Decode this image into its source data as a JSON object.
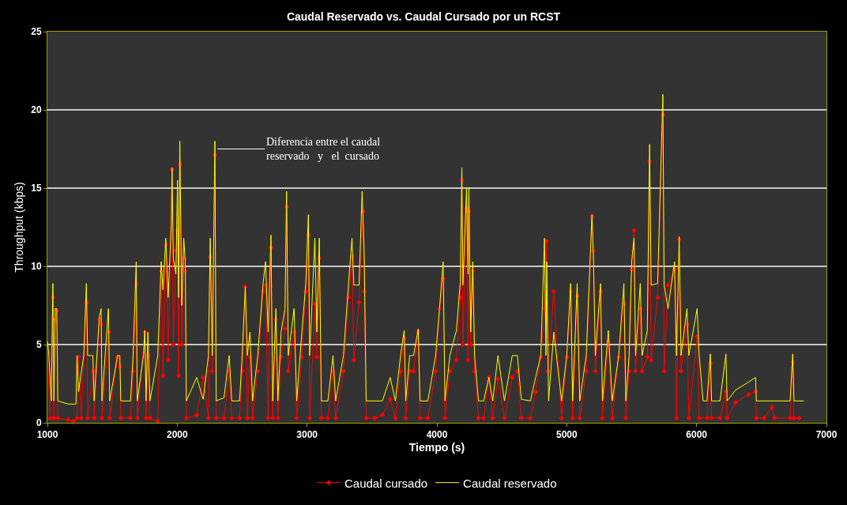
{
  "chart_data": {
    "type": "line",
    "title": "Caudal Reservado vs. Caudal Cursado por un RCST",
    "xlabel": "Tiempo (s)",
    "ylabel": "Throughput (kbps)",
    "xlim": [
      1000,
      7000
    ],
    "xticks": [
      1000,
      2000,
      3000,
      4000,
      5000,
      6000,
      7000
    ],
    "ylim": [
      0,
      25
    ],
    "yticks": [
      0,
      5,
      10,
      15,
      20,
      25
    ],
    "grid": "y",
    "legend": "bottom",
    "annotations": [
      {
        "text": "Diferencia entre el caudal\nreservado   y   el  cursado",
        "x": 2310,
        "y": 17.5
      }
    ],
    "series": [
      {
        "name": "Caudal cursado",
        "color": "#ff0000",
        "marker": "diamond",
        "line_style": "solid",
        "x": [
          1000,
          1020,
          1042,
          1050,
          1060,
          1072,
          1080,
          1160,
          1200,
          1228,
          1240,
          1260,
          1300,
          1310,
          1350,
          1360,
          1400,
          1414,
          1420,
          1474,
          1480,
          1540,
          1558,
          1565,
          1640,
          1660,
          1684,
          1692,
          1750,
          1760,
          1774,
          1790,
          1850,
          1876,
          1890,
          1912,
          1930,
          1960,
          1970,
          1990,
          2002,
          2010,
          2020,
          2035,
          2050,
          2062,
          2070,
          2150,
          2200,
          2240,
          2254,
          2270,
          2290,
          2300,
          2360,
          2400,
          2420,
          2480,
          2500,
          2524,
          2540,
          2560,
          2580,
          2620,
          2660,
          2680,
          2700,
          2722,
          2735,
          2760,
          2775,
          2800,
          2830,
          2842,
          2855,
          2900,
          2920,
          2960,
          2990,
          3010,
          3020,
          3060,
          3075,
          3094,
          3110,
          3160,
          3200,
          3220,
          3280,
          3320,
          3346,
          3360,
          3400,
          3430,
          3440,
          3455,
          3520,
          3580,
          3640,
          3680,
          3720,
          3748,
          3760,
          3790,
          3820,
          3856,
          3870,
          3930,
          3990,
          4020,
          4048,
          4062,
          4100,
          4150,
          4180,
          4192,
          4200,
          4228,
          4240,
          4246,
          4260,
          4276,
          4290,
          4320,
          4360,
          4400,
          4430,
          4470,
          4520,
          4580,
          4620,
          4650,
          4720,
          4760,
          4800,
          4830,
          4846,
          4855,
          4900,
          4960,
          5000,
          5030,
          5045,
          5080,
          5100,
          5150,
          5194,
          5206,
          5220,
          5260,
          5275,
          5320,
          5350,
          5400,
          5440,
          5455,
          5480,
          5500,
          5518,
          5530,
          5566,
          5580,
          5620,
          5638,
          5650,
          5700,
          5740,
          5750,
          5780,
          5830,
          5845,
          5866,
          5880,
          5926,
          5940,
          6004,
          6020,
          6080,
          6106,
          6115,
          6180,
          6226,
          6235,
          6300,
          6400,
          6454,
          6460,
          6520,
          6580,
          6600,
          6720,
          6740,
          6750,
          6790
        ],
        "values": [
          4.5,
          0.3,
          8.0,
          0.3,
          6.6,
          7.2,
          0.3,
          0.2,
          0.1,
          0.3,
          4.2,
          0.3,
          7.7,
          0.3,
          3.3,
          0.3,
          6.6,
          6.3,
          0.3,
          5.8,
          0.3,
          4.2,
          3.6,
          0.3,
          0.3,
          3.3,
          8.9,
          0.3,
          5.8,
          0.3,
          4.3,
          0.3,
          0.1,
          9.7,
          3.0,
          11.4,
          4.0,
          16.2,
          5.0,
          11.0,
          12.3,
          3.0,
          16.5,
          5.0,
          10.5,
          9.7,
          0.3,
          0.5,
          2.9,
          0.3,
          10.6,
          3.3,
          17.1,
          0.3,
          0.3,
          3.3,
          0.3,
          0.3,
          3.3,
          8.7,
          0.3,
          4.2,
          0.3,
          3.3,
          8.4,
          8.8,
          0.3,
          11.2,
          0.3,
          6.6,
          0.3,
          4.2,
          6.0,
          13.8,
          3.3,
          5.8,
          0.3,
          4.2,
          8.4,
          12.0,
          0.3,
          7.6,
          4.2,
          10.5,
          0.3,
          0.3,
          3.3,
          0.3,
          3.3,
          8.0,
          10.6,
          4.0,
          7.7,
          13.5,
          8.4,
          0.3,
          0.3,
          0.5,
          1.5,
          0.3,
          3.3,
          5.4,
          0.3,
          3.3,
          3.3,
          5.8,
          0.3,
          0.3,
          3.3,
          7.3,
          9.2,
          0.3,
          3.3,
          4.0,
          8.0,
          15.5,
          5.0,
          13.7,
          4.0,
          13.5,
          5.0,
          9.7,
          3.3,
          0.3,
          0.3,
          2.9,
          0.3,
          2.8,
          0.3,
          2.9,
          3.3,
          0.3,
          0.3,
          2.0,
          4.2,
          7.3,
          11.6,
          3.3,
          8.4,
          0.3,
          4.2,
          8.4,
          0.3,
          8.1,
          0.3,
          3.3,
          13.2,
          11.0,
          3.3,
          8.4,
          0.3,
          5.2,
          0.3,
          4.2,
          7.6,
          0.3,
          3.3,
          9.8,
          12.3,
          3.3,
          7.3,
          3.3,
          4.2,
          16.7,
          4.0,
          8.0,
          19.7,
          3.3,
          8.8,
          9.8,
          0.3,
          11.7,
          3.3,
          6.3,
          0.3,
          5.5,
          0.3,
          0.3,
          3.8,
          0.3,
          0.3,
          2.0,
          0.3,
          1.3,
          1.8,
          2.0,
          0.3,
          0.3,
          1.0,
          0.3,
          0.3,
          3.9,
          0.3,
          0.3
        ]
      },
      {
        "name": "Caudal reservado",
        "color": "#ffff00",
        "marker": "none",
        "line_style": "solid",
        "x": [
          1000,
          1010,
          1030,
          1042,
          1050,
          1060,
          1072,
          1080,
          1160,
          1220,
          1228,
          1240,
          1280,
          1300,
          1310,
          1350,
          1360,
          1400,
          1414,
          1420,
          1470,
          1480,
          1540,
          1558,
          1565,
          1640,
          1660,
          1684,
          1692,
          1740,
          1750,
          1760,
          1774,
          1790,
          1850,
          1876,
          1890,
          1912,
          1930,
          1955,
          1960,
          1970,
          1990,
          2002,
          2010,
          2020,
          2035,
          2050,
          2062,
          2070,
          2150,
          2200,
          2240,
          2254,
          2270,
          2290,
          2300,
          2360,
          2400,
          2420,
          2480,
          2500,
          2524,
          2540,
          2560,
          2580,
          2620,
          2660,
          2680,
          2700,
          2722,
          2735,
          2760,
          2775,
          2800,
          2830,
          2842,
          2855,
          2900,
          2920,
          2960,
          2990,
          3010,
          3020,
          3060,
          3075,
          3094,
          3110,
          3160,
          3200,
          3220,
          3280,
          3320,
          3346,
          3360,
          3400,
          3424,
          3440,
          3455,
          3520,
          3580,
          3640,
          3680,
          3720,
          3748,
          3760,
          3790,
          3820,
          3856,
          3870,
          3930,
          3990,
          4020,
          4048,
          4062,
          4100,
          4150,
          4180,
          4192,
          4200,
          4228,
          4240,
          4246,
          4260,
          4276,
          4290,
          4320,
          4360,
          4400,
          4430,
          4470,
          4520,
          4580,
          4620,
          4650,
          4720,
          4760,
          4800,
          4828,
          4840,
          4846,
          4860,
          4900,
          4960,
          5000,
          5030,
          5045,
          5080,
          5100,
          5150,
          5194,
          5206,
          5220,
          5260,
          5275,
          5320,
          5350,
          5400,
          5440,
          5455,
          5480,
          5500,
          5518,
          5530,
          5566,
          5580,
          5620,
          5638,
          5650,
          5700,
          5740,
          5750,
          5780,
          5830,
          5845,
          5866,
          5880,
          5926,
          5940,
          6004,
          6020,
          6050,
          6080,
          6106,
          6115,
          6180,
          6226,
          6235,
          6300,
          6400,
          6454,
          6460,
          6720,
          6740,
          6750,
          6826
        ],
        "values": [
          5.2,
          4.5,
          1.4,
          8.9,
          1.4,
          7.3,
          7.3,
          1.4,
          1.2,
          1.2,
          4.3,
          2.0,
          4.3,
          8.9,
          4.3,
          4.3,
          1.4,
          6.8,
          7.3,
          1.4,
          7.3,
          1.4,
          4.3,
          4.3,
          1.4,
          1.4,
          4.3,
          10.3,
          1.4,
          4.3,
          5.9,
          1.4,
          5.8,
          1.4,
          4.3,
          10.3,
          8.5,
          11.8,
          8.0,
          12.8,
          16.3,
          10.5,
          9.5,
          15.5,
          8.0,
          18.0,
          7.5,
          11.8,
          10.3,
          1.4,
          2.9,
          1.5,
          4.3,
          11.8,
          4.3,
          18.0,
          1.4,
          1.6,
          4.3,
          1.4,
          1.4,
          4.3,
          8.7,
          4.3,
          5.8,
          1.4,
          4.3,
          8.8,
          10.3,
          5.8,
          12.0,
          1.4,
          7.3,
          1.4,
          5.8,
          7.3,
          14.8,
          4.3,
          7.3,
          1.4,
          5.8,
          8.9,
          13.3,
          4.3,
          11.8,
          5.8,
          11.8,
          1.4,
          1.4,
          4.3,
          1.4,
          4.3,
          9.0,
          11.8,
          8.8,
          8.8,
          14.8,
          10.8,
          1.4,
          1.4,
          1.4,
          2.9,
          1.4,
          4.3,
          5.9,
          1.4,
          4.3,
          4.3,
          6.0,
          1.4,
          1.4,
          4.3,
          7.3,
          10.3,
          1.4,
          4.3,
          5.9,
          9.0,
          16.3,
          8.8,
          15.0,
          9.5,
          15.0,
          5.8,
          10.3,
          4.3,
          1.4,
          1.4,
          2.9,
          1.4,
          4.3,
          1.4,
          4.3,
          4.3,
          1.5,
          1.4,
          2.9,
          4.3,
          11.8,
          4.3,
          10.3,
          1.4,
          5.8,
          1.4,
          4.3,
          8.9,
          1.4,
          8.9,
          1.4,
          4.3,
          13.3,
          10.3,
          4.3,
          8.9,
          1.4,
          5.9,
          1.4,
          4.3,
          8.9,
          1.4,
          4.3,
          10.3,
          11.8,
          4.3,
          8.9,
          4.3,
          5.9,
          17.8,
          8.8,
          8.9,
          21.0,
          8.8,
          7.3,
          10.3,
          4.3,
          11.9,
          4.3,
          7.3,
          4.3,
          7.3,
          4.3,
          1.4,
          1.4,
          4.4,
          1.4,
          1.4,
          4.4,
          1.4,
          2.1,
          2.6,
          2.9,
          1.4,
          1.4,
          4.4,
          1.4,
          1.4
        ]
      }
    ]
  }
}
